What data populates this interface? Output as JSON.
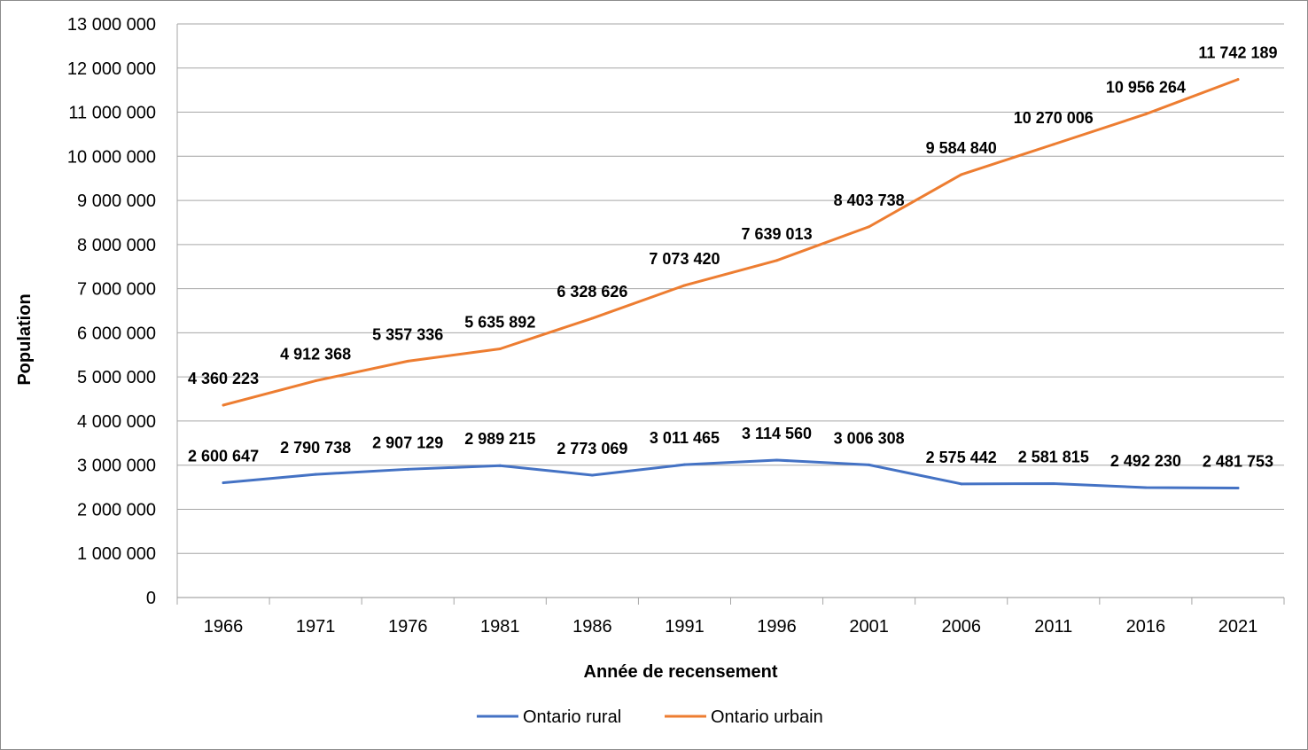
{
  "chart_data": {
    "type": "line",
    "title": "",
    "xlabel": "Année de recensement",
    "ylabel": "Population",
    "ylim": [
      0,
      13000000
    ],
    "y_ticks": [
      "0",
      "1 000 000",
      "2 000 000",
      "3 000 000",
      "4 000 000",
      "5 000 000",
      "6 000 000",
      "7 000 000",
      "8 000 000",
      "9 000 000",
      "10 000 000",
      "11 000 000",
      "12 000 000",
      "13 000 000"
    ],
    "grid": true,
    "legend_position": "bottom",
    "categories": [
      "1966",
      "1971",
      "1976",
      "1981",
      "1986",
      "1991",
      "1996",
      "2001",
      "2006",
      "2011",
      "2016",
      "2021"
    ],
    "series": [
      {
        "name": "Ontario rural",
        "color": "#4472c4",
        "values": [
          2600647,
          2790738,
          2907129,
          2989215,
          2773069,
          3011465,
          3114560,
          3006308,
          2575442,
          2581815,
          2492230,
          2481753
        ],
        "labels": [
          "2 600 647",
          "2 790 738",
          "2 907 129",
          "2 989 215",
          "2 773 069",
          "3 011 465",
          "3 114 560",
          "3 006 308",
          "2 575 442",
          "2 581 815",
          "2 492 230",
          "2 481 753"
        ]
      },
      {
        "name": "Ontario urbain",
        "color": "#ed7d31",
        "values": [
          4360223,
          4912368,
          5357336,
          5635892,
          6328626,
          7073420,
          7639013,
          8403738,
          9584840,
          10270006,
          10956264,
          11742189
        ],
        "labels": [
          "4 360 223",
          "4 912 368",
          "5 357 336",
          "5 635 892",
          "6 328 626",
          "7 073 420",
          "7 639 013",
          "8 403 738",
          "9 584 840",
          "10 270 006",
          "10 956 264",
          "11 742 189"
        ]
      }
    ]
  }
}
